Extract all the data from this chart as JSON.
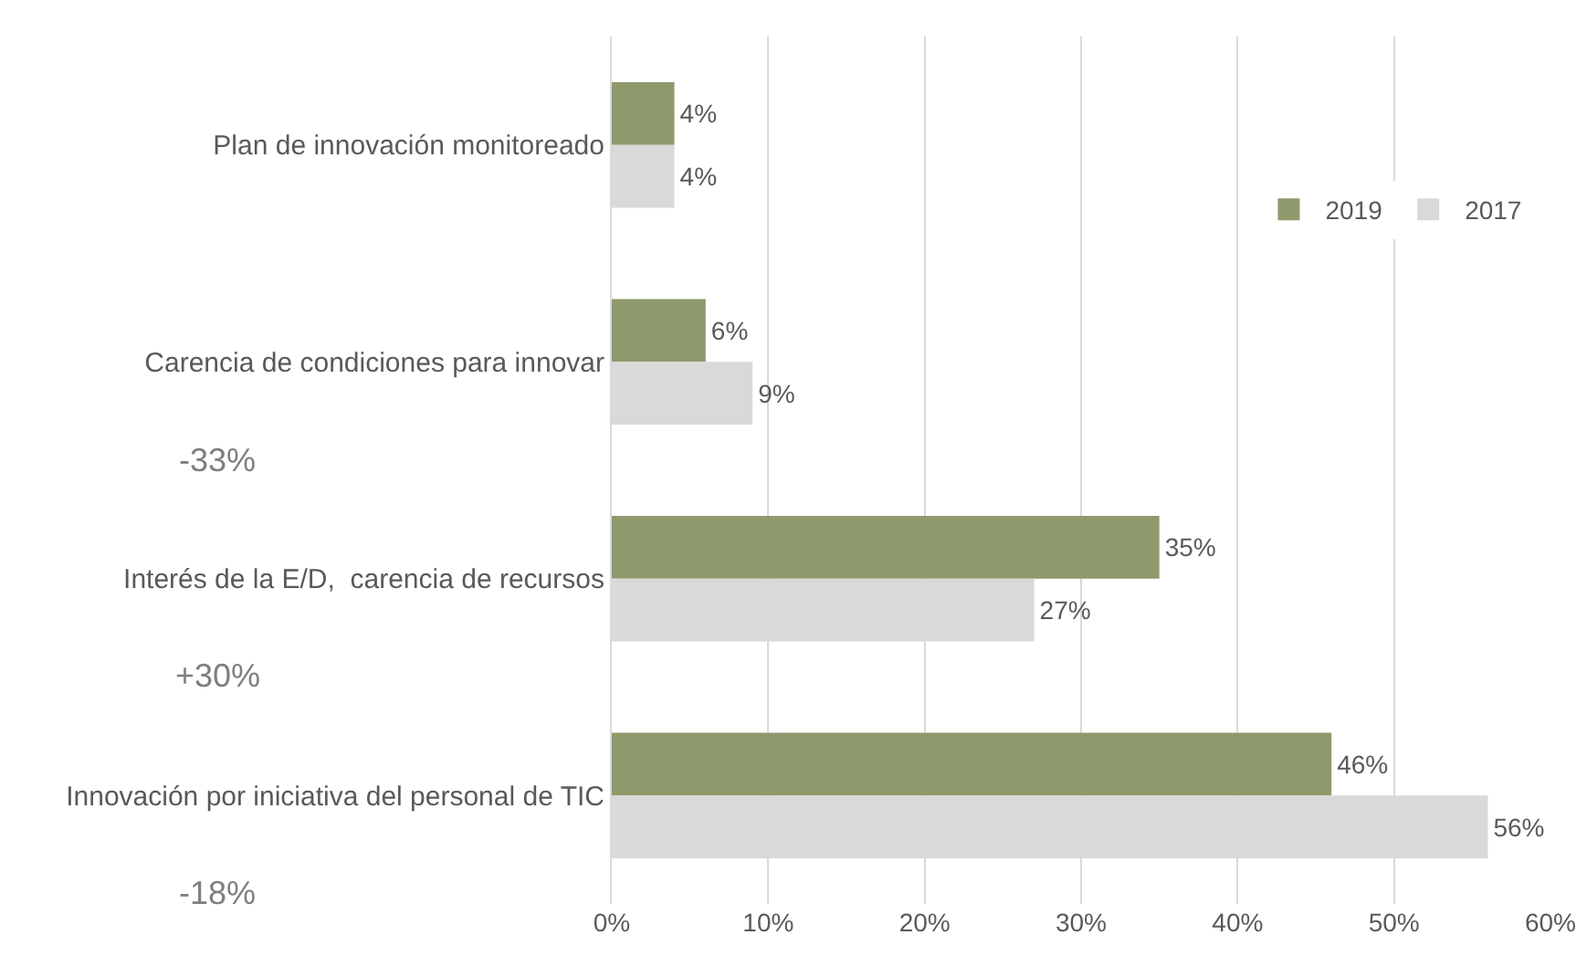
{
  "chart_data": {
    "type": "bar",
    "orientation": "horizontal",
    "categories": [
      "Plan de innovación monitoreado",
      "Carencia de condiciones para innovar",
      "Interés de la E/D,  carencia de recursos",
      "Innovación por iniciativa del personal de TIC"
    ],
    "series": [
      {
        "name": "2019",
        "color": "#8e9a6b",
        "values": [
          4,
          6,
          35,
          46
        ],
        "value_labels": [
          "4%",
          "6%",
          "35%",
          "46%"
        ]
      },
      {
        "name": "2017",
        "color": "#d9d9d9",
        "values": [
          4,
          9,
          27,
          56
        ],
        "value_labels": [
          "4%",
          "9%",
          "27%",
          "56%"
        ]
      }
    ],
    "xlim": [
      0,
      60
    ],
    "xticks": [
      {
        "value": 0,
        "label": "0%"
      },
      {
        "value": 10,
        "label": "10%"
      },
      {
        "value": 20,
        "label": "20%"
      },
      {
        "value": 30,
        "label": "30%"
      },
      {
        "value": 40,
        "label": "40%"
      },
      {
        "value": 50,
        "label": "50%"
      },
      {
        "value": 60,
        "label": "60%"
      }
    ],
    "grid": "x",
    "legend": "top right",
    "annotations": [
      "-33%",
      "+30%",
      "-18%"
    ]
  }
}
